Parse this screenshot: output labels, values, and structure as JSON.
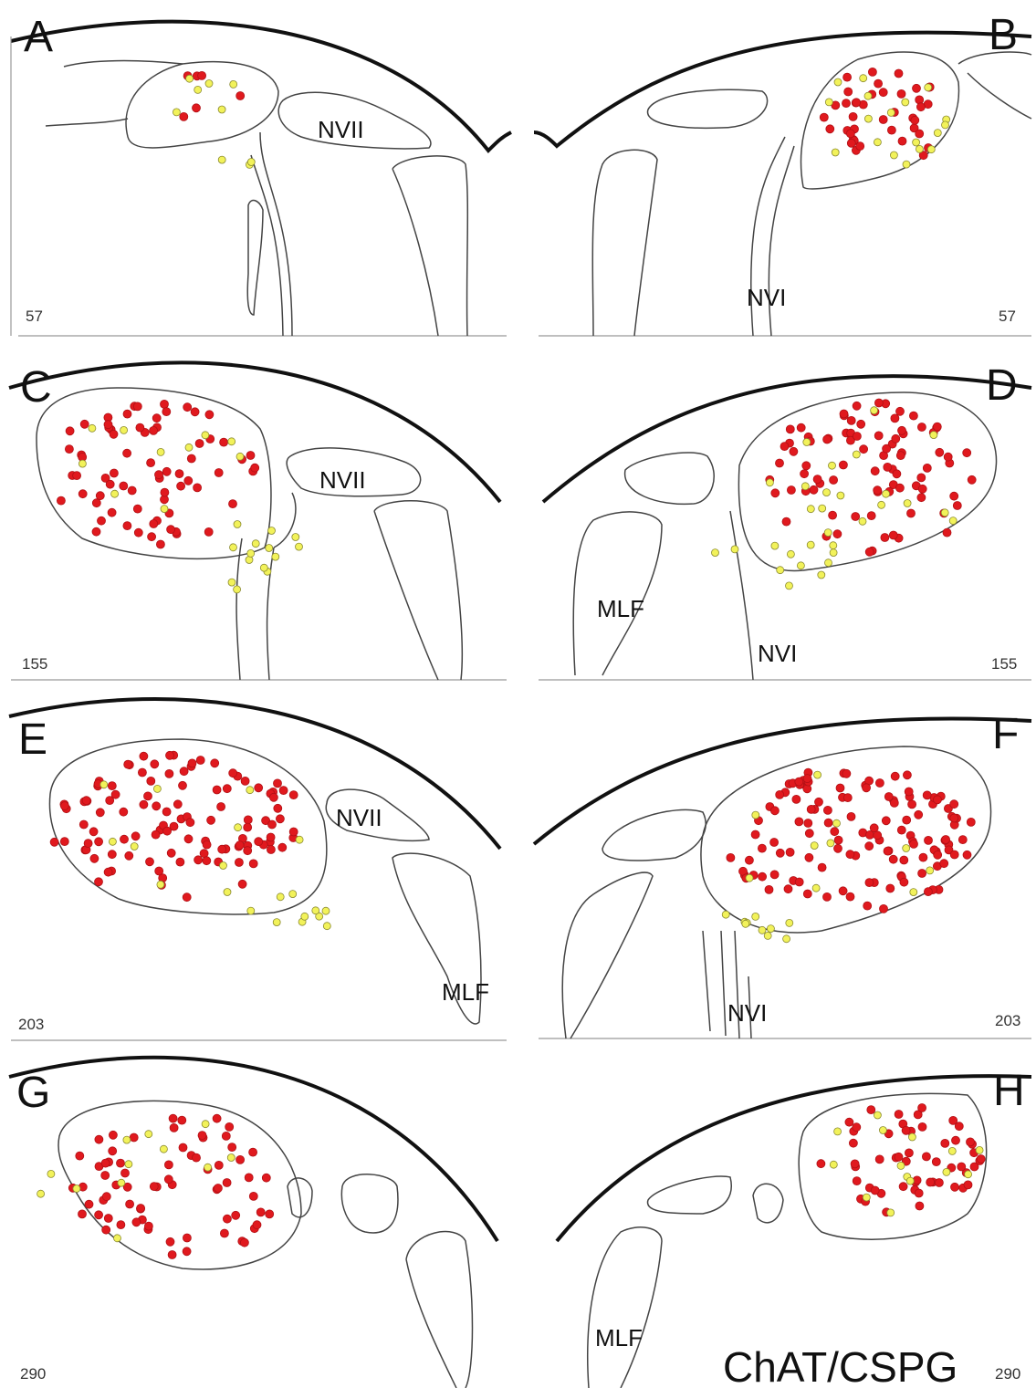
{
  "panels": [
    {
      "letter": "A",
      "section": "57",
      "labels": [
        "NVII"
      ]
    },
    {
      "letter": "B",
      "section": "57",
      "labels": [
        "NVI"
      ]
    },
    {
      "letter": "C",
      "section": "155",
      "labels": [
        "NVII"
      ]
    },
    {
      "letter": "D",
      "section": "155",
      "labels": [
        "MLF",
        "NVI"
      ]
    },
    {
      "letter": "E",
      "section": "203",
      "labels": [
        "NVII",
        "MLF"
      ]
    },
    {
      "letter": "F",
      "section": "203",
      "labels": [
        "NVI"
      ]
    },
    {
      "letter": "G",
      "section": "290"
    },
    {
      "letter": "H",
      "section": "290",
      "labels": [
        "MLF"
      ]
    }
  ],
  "legend": "ChAT/CSPG"
}
